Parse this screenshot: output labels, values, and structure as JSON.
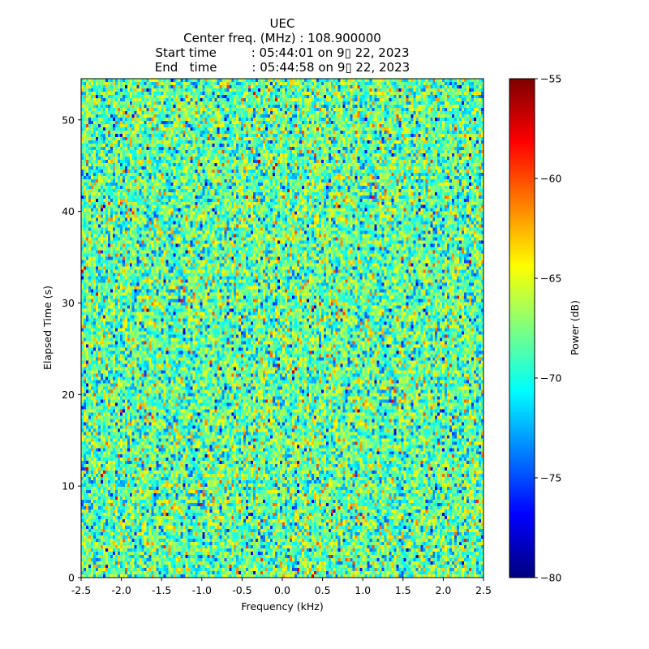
{
  "chart_data": {
    "type": "heatmap",
    "title_lines": [
      "UEC",
      "Center freq. (MHz) : 108.900000",
      "Start time         : 05:44:01 on 9▯ 22, 2023",
      "End   time         : 05:44:58 on 9▯ 22, 2023"
    ],
    "xlabel": "Frequency (kHz)",
    "ylabel": "Elapsed Time (s)",
    "xlim": [
      -2.5,
      2.5
    ],
    "ylim": [
      0,
      54.5
    ],
    "xticks": [
      "-2.5",
      "-2.0",
      "-1.5",
      "-1.0",
      "-0.5",
      "0.0",
      "0.5",
      "1.0",
      "1.5",
      "2.0",
      "2.5"
    ],
    "xtick_values": [
      -2.5,
      -2.0,
      -1.5,
      -1.0,
      -0.5,
      0.0,
      0.5,
      1.0,
      1.5,
      2.0,
      2.5
    ],
    "yticks": [
      "0",
      "10",
      "20",
      "30",
      "40",
      "50"
    ],
    "ytick_values": [
      0,
      10,
      20,
      30,
      40,
      50
    ],
    "colorbar": {
      "label": "Power (dB)",
      "range": [
        -80,
        -55
      ],
      "ticks": [
        "−55",
        "−60",
        "−65",
        "−70",
        "−75",
        "−80"
      ],
      "tick_values": [
        -55,
        -60,
        -65,
        -70,
        -75,
        -80
      ],
      "colormap": "jet"
    },
    "noise_model": {
      "mean_db": -69,
      "std_db": 3.2,
      "freq_bins": 166,
      "time_bins": 154
    }
  }
}
